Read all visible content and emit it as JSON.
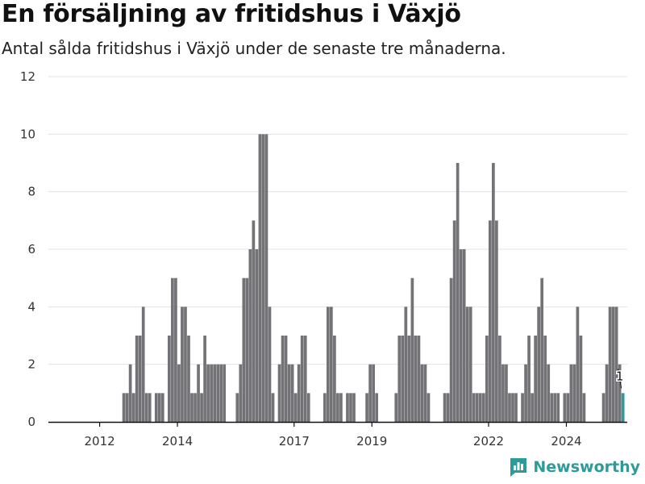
{
  "title": "En försäljning av fritidshus i Växjö",
  "subtitle": "Antal sålda fritidshus i Växjö under de senaste tre månaderna.",
  "brand": {
    "name": "Newsworthy",
    "color": "#2e9b9b"
  },
  "colors": {
    "bar": "#737276",
    "highlight": "#2e9b9b"
  },
  "chart_data": {
    "type": "bar",
    "title": "En försäljning av fritidshus i Växjö",
    "subtitle": "Antal sålda fritidshus i Växjö under de senaste tre månaderna.",
    "xlabel": "",
    "ylabel": "",
    "ylim": [
      0,
      12
    ],
    "y_ticks": [
      0,
      2,
      4,
      6,
      8,
      10,
      12
    ],
    "x_ticks": [
      "2012",
      "2014",
      "2017",
      "2019",
      "2022",
      "2024"
    ],
    "grid": "horizontal",
    "start_month": "2011-08",
    "series": [
      {
        "values": [
          0,
          0,
          0,
          0,
          0,
          0,
          0,
          0,
          0,
          0,
          0,
          0,
          1,
          1,
          2,
          1,
          3,
          3,
          4,
          1,
          1,
          0,
          1,
          1,
          1,
          0,
          3,
          5,
          5,
          2,
          4,
          4,
          3,
          1,
          1,
          2,
          1,
          3,
          2,
          2,
          2,
          2,
          2,
          2,
          0,
          0,
          0,
          1,
          2,
          5,
          5,
          6,
          7,
          6,
          10,
          10,
          10,
          4,
          1,
          0,
          2,
          3,
          3,
          2,
          2,
          1,
          2,
          3,
          3,
          1,
          0,
          0,
          0,
          0,
          1,
          4,
          4,
          3,
          1,
          1,
          0,
          1,
          1,
          1,
          0,
          0,
          0,
          1,
          2,
          2,
          1,
          0,
          0,
          0,
          0,
          0,
          1,
          3,
          3,
          4,
          3,
          5,
          3,
          3,
          2,
          2,
          1,
          0,
          0,
          0,
          0,
          1,
          1,
          5,
          7,
          9,
          6,
          6,
          4,
          4,
          1,
          1,
          1,
          1,
          3,
          7,
          9,
          7,
          3,
          2,
          2,
          1,
          1,
          1,
          0,
          1,
          2,
          3,
          1,
          3,
          4,
          5,
          3,
          2,
          1,
          1,
          1,
          0,
          1,
          1,
          2,
          2,
          4,
          3,
          1,
          0,
          0,
          0,
          0,
          0,
          1,
          2,
          4,
          4,
          4,
          2,
          1
        ]
      }
    ],
    "highlight_label": "1"
  }
}
